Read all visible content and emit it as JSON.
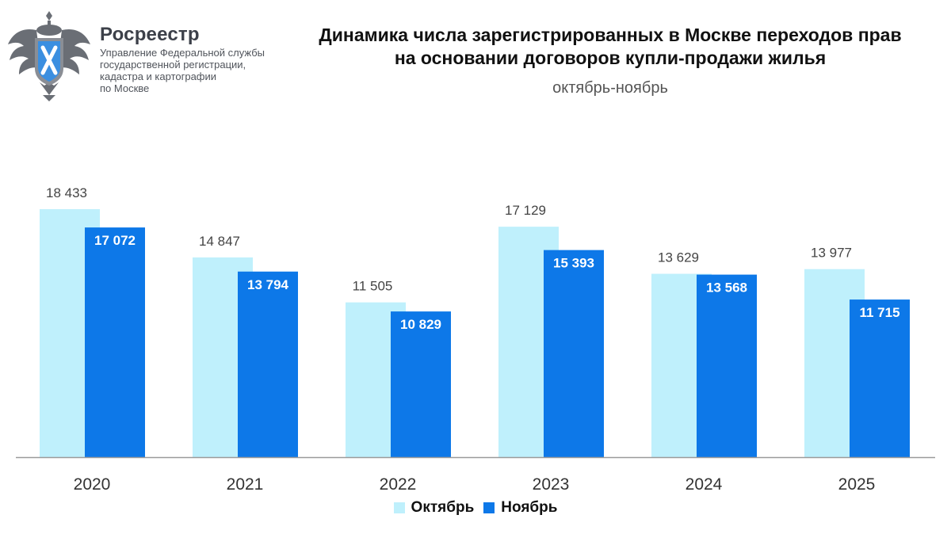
{
  "header": {
    "org_name": "Росреестр",
    "org_sub": [
      "Управление Федеральной службы",
      "государственной регистрации,",
      "кадастра и картографии",
      "по Москве"
    ],
    "title_lines": [
      "Динамика числа зарегистрированных в Москве переходов прав",
      "на основании договоров купли-продажи жилья"
    ],
    "subtitle": "октябрь-ноябрь"
  },
  "chart_data": {
    "type": "bar",
    "title": "Динамика числа зарегистрированных в Москве переходов прав на основании договоров купли-продажи жилья",
    "subtitle": "октябрь-ноябрь",
    "categories": [
      "2020",
      "2021",
      "2022",
      "2023",
      "2024",
      "2025"
    ],
    "series": [
      {
        "name": "Октябрь",
        "values": [
          18433,
          14847,
          11505,
          17129,
          13629,
          13977
        ],
        "labels": [
          "18 433",
          "14 847",
          "11 505",
          "17 129",
          "13 629",
          "13 977"
        ],
        "color": "#bff0fc"
      },
      {
        "name": "Ноябрь",
        "values": [
          17072,
          13794,
          10829,
          15393,
          13568,
          11715
        ],
        "labels": [
          "17 072",
          "13 794",
          "10 829",
          "15 393",
          "13 568",
          "11 715"
        ],
        "color": "#0d78e8"
      }
    ],
    "ylim": [
      0,
      18433
    ],
    "grid": false,
    "legend_position": "bottom-center"
  },
  "legend": {
    "october": "Октябрь",
    "november": "Ноябрь"
  },
  "colors": {
    "october": "#bff0fc",
    "november": "#0d78e8",
    "axis": "#9a9a9a"
  }
}
